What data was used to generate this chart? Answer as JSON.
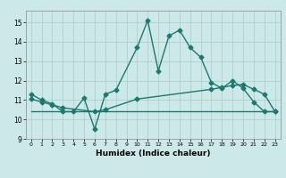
{
  "xlabel": "Humidex (Indice chaleur)",
  "bg_color": "#cce8e8",
  "line_color": "#1a7a6e",
  "grid_color": "#aacccc",
  "xlim": [
    -0.5,
    23.5
  ],
  "ylim": [
    9.0,
    15.6
  ],
  "yticks": [
    9,
    10,
    11,
    12,
    13,
    14,
    15
  ],
  "xticks": [
    0,
    1,
    2,
    3,
    4,
    5,
    6,
    7,
    8,
    9,
    10,
    11,
    12,
    13,
    14,
    15,
    16,
    17,
    18,
    19,
    20,
    21,
    22,
    23
  ],
  "line1_x": [
    0,
    1,
    2,
    3,
    4,
    5,
    6,
    7,
    8,
    10,
    11,
    12,
    13,
    14,
    15,
    16,
    17,
    18,
    19,
    20,
    21,
    22,
    23
  ],
  "line1_y": [
    11.3,
    11.0,
    10.8,
    10.4,
    10.4,
    11.1,
    9.5,
    11.3,
    11.5,
    13.7,
    15.1,
    12.5,
    14.3,
    14.6,
    13.7,
    13.2,
    11.9,
    11.6,
    12.0,
    11.6,
    10.9,
    10.4,
    10.4
  ],
  "line2_x": [
    0,
    1,
    2,
    3,
    6,
    7,
    10,
    17,
    18,
    19,
    20,
    21,
    22,
    23
  ],
  "line2_y": [
    11.05,
    10.9,
    10.75,
    10.6,
    10.4,
    10.5,
    11.05,
    11.55,
    11.65,
    11.75,
    11.8,
    11.55,
    11.3,
    10.4
  ],
  "line3_x": [
    0,
    3,
    6,
    22,
    23
  ],
  "line3_y": [
    10.4,
    10.4,
    10.4,
    10.4,
    10.4
  ],
  "marker": "D",
  "markersize": 2.5,
  "linewidth": 1.0,
  "tick_fontsize": 5.5,
  "xlabel_fontsize": 6.5
}
